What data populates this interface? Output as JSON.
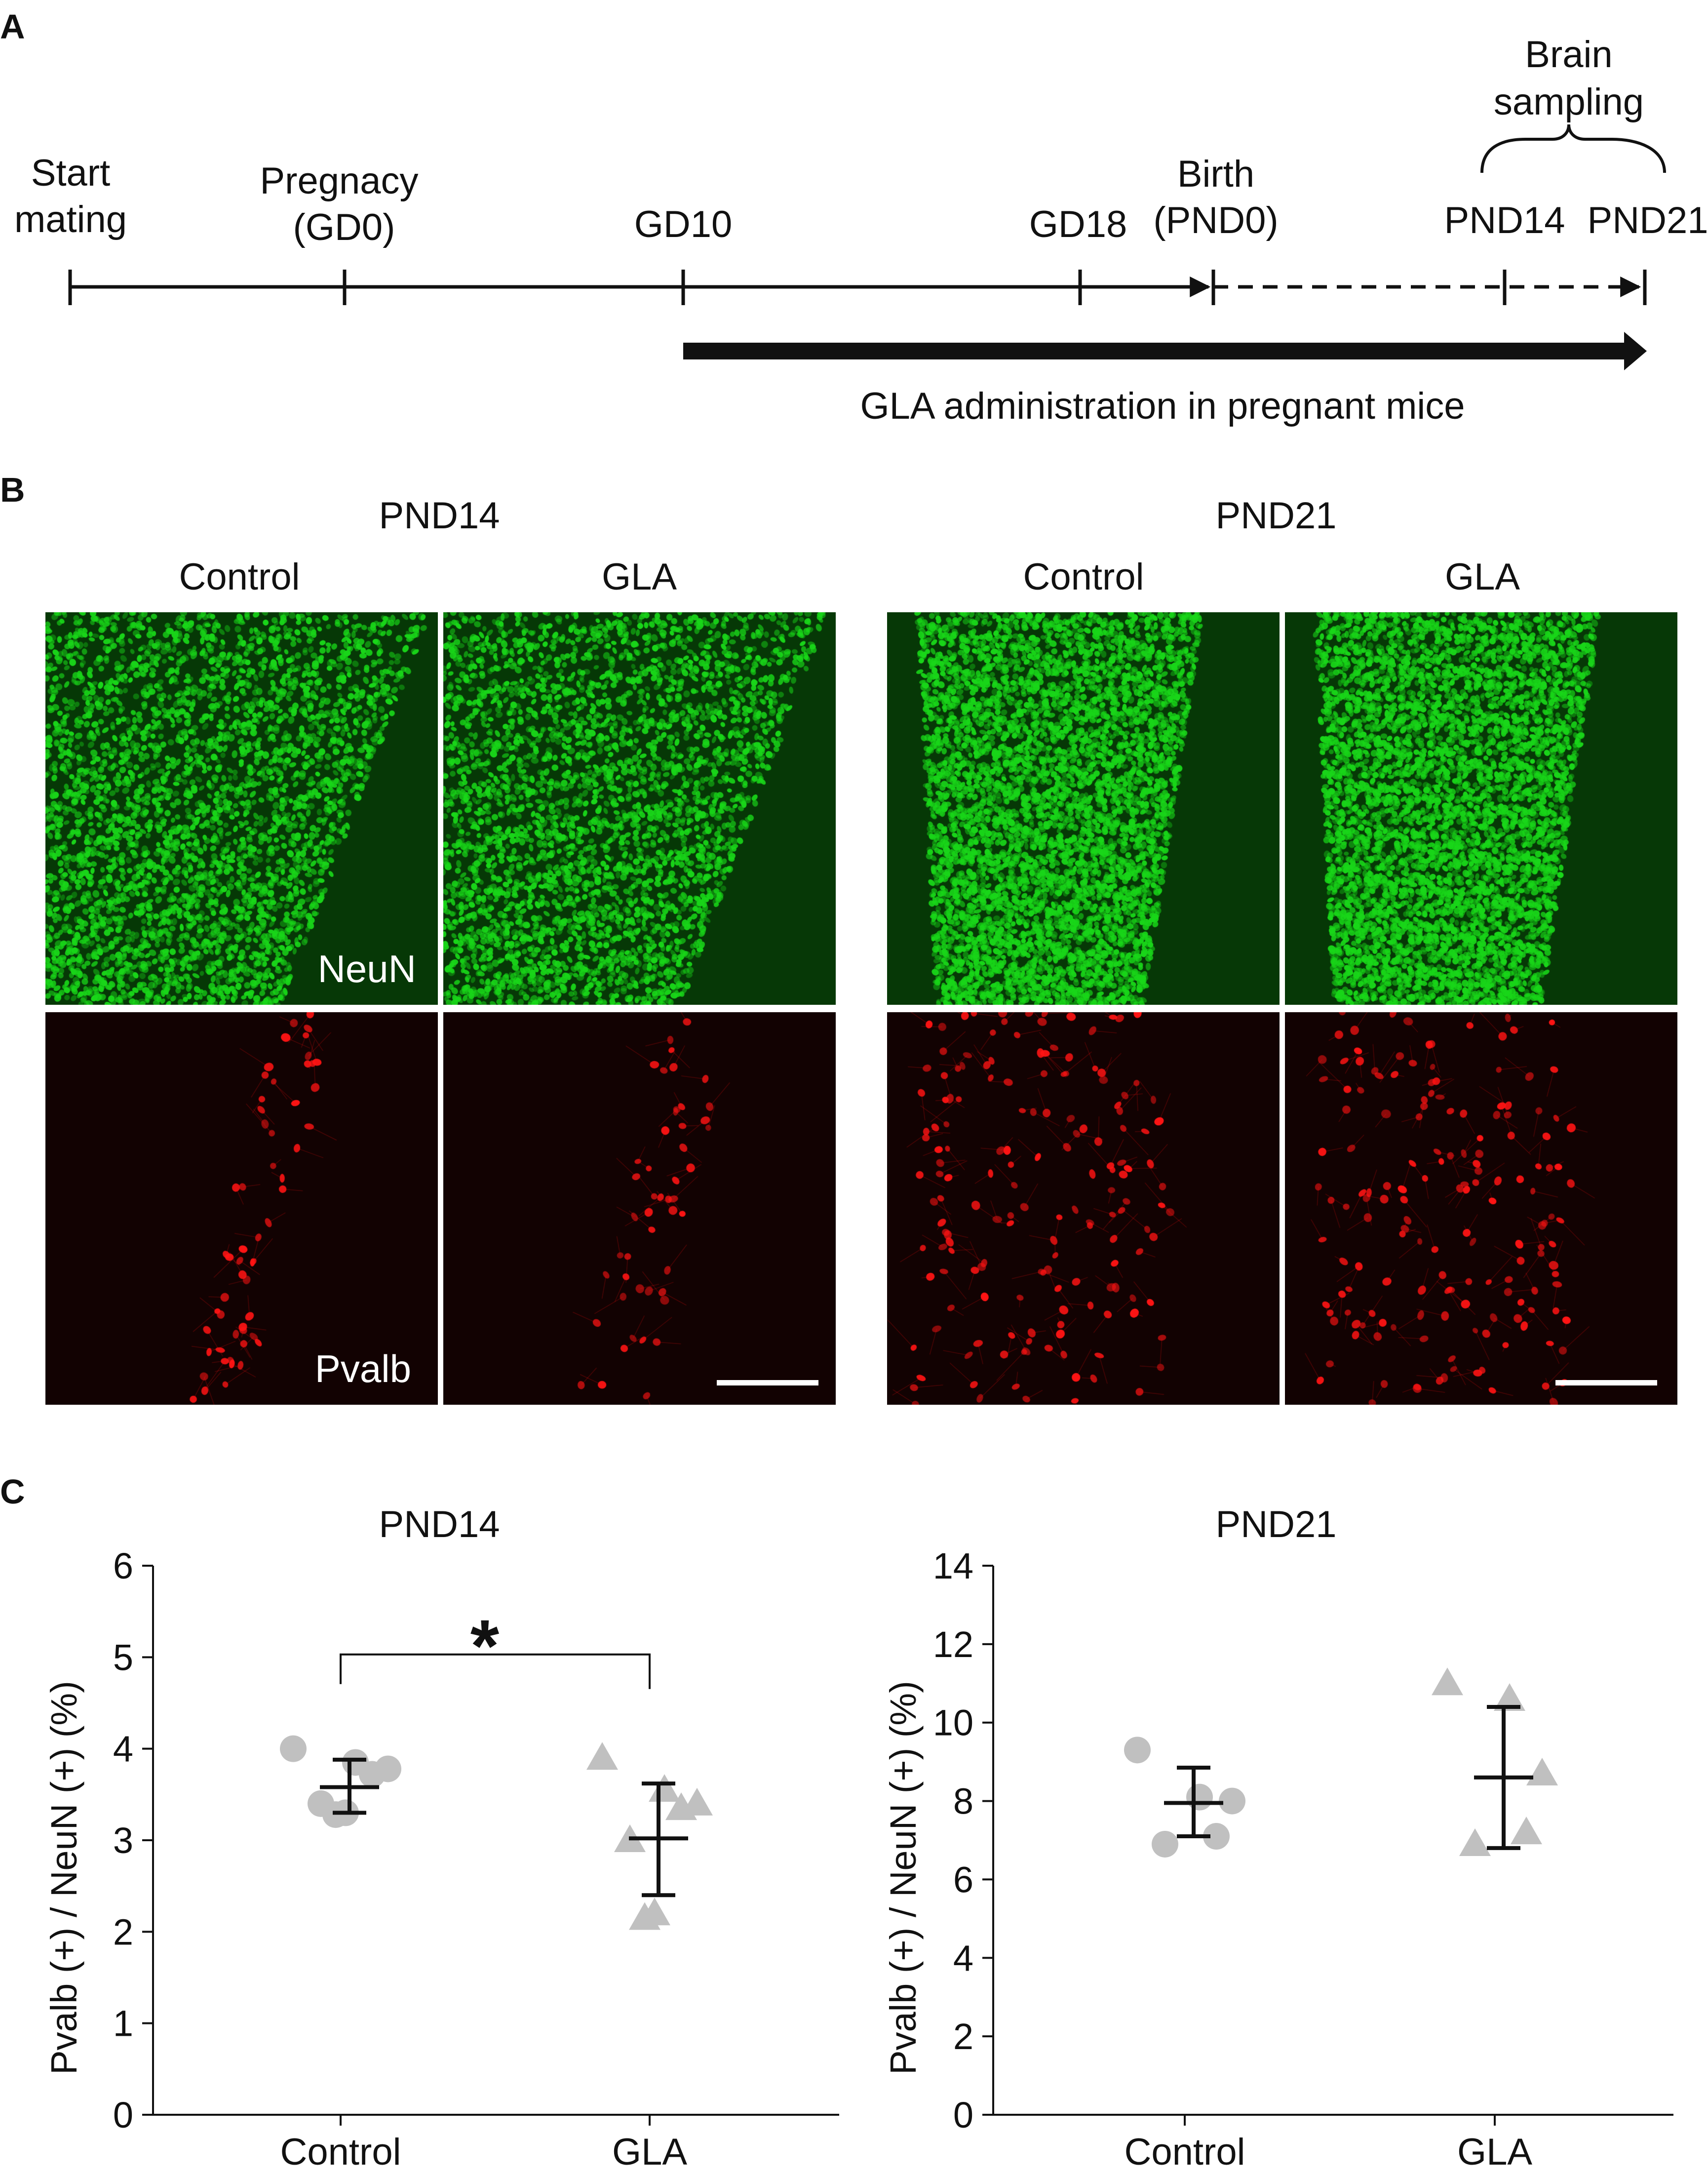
{
  "panel_a": {
    "label": "A",
    "timeline": [
      {
        "lines": [
          "Start",
          "mating"
        ]
      },
      {
        "lines": [
          "Pregnacy",
          "(GD0)"
        ]
      },
      {
        "lines": [
          "GD10"
        ]
      },
      {
        "lines": [
          "GD18"
        ]
      },
      {
        "lines": [
          "Birth",
          "(PND0)"
        ]
      },
      {
        "lines": [
          "PND14"
        ]
      },
      {
        "lines": [
          "PND21"
        ]
      }
    ],
    "bracket_label": [
      "Brain",
      "sampling"
    ],
    "administration_label": "GLA administration in pregnant mice"
  },
  "panel_b": {
    "label": "B",
    "groups": [
      {
        "title": "PND14",
        "columns": [
          "Control",
          "GLA"
        ]
      },
      {
        "title": "PND21",
        "columns": [
          "Control",
          "GLA"
        ]
      }
    ],
    "stain_labels": {
      "top": "NeuN",
      "bottom": "Pvalb"
    },
    "colors": {
      "neun": "#19d619",
      "pvalb": "#ff1414"
    }
  },
  "panel_c": {
    "label": "C"
  },
  "chart_data": [
    {
      "type": "scatter",
      "title": "PND14",
      "ylabel": "Pvalb (+) / NeuN (+) (%)",
      "categories": [
        "Control",
        "GLA"
      ],
      "ylim": [
        0,
        6
      ],
      "yticks": [
        0,
        1,
        2,
        3,
        4,
        5,
        6
      ],
      "series": [
        {
          "category": "Control",
          "marker": "circle",
          "color": "#c0c0c0",
          "points": [
            4.0,
            3.85,
            3.78,
            3.72,
            3.4,
            3.3,
            3.28
          ],
          "mean": 3.58,
          "error_low": 3.3,
          "error_high": 3.88
        },
        {
          "category": "GLA",
          "marker": "triangle",
          "color": "#c0c0c0",
          "points": [
            3.9,
            3.55,
            3.4,
            3.35,
            3.0,
            2.2,
            2.15
          ],
          "mean": 3.02,
          "error_low": 2.4,
          "error_high": 3.62
        }
      ],
      "significance": {
        "between": [
          "Control",
          "GLA"
        ],
        "y": 5.03,
        "symbol": "*"
      }
    },
    {
      "type": "scatter",
      "title": "PND21",
      "ylabel": "Pvalb (+) / NeuN (+) (%)",
      "categories": [
        "Control",
        "GLA"
      ],
      "ylim": [
        0,
        14
      ],
      "yticks": [
        0,
        2,
        4,
        6,
        8,
        10,
        12,
        14
      ],
      "series": [
        {
          "category": "Control",
          "marker": "circle",
          "color": "#c0c0c0",
          "points": [
            9.3,
            8.1,
            8.0,
            7.1,
            6.9
          ],
          "mean": 7.95,
          "error_low": 7.1,
          "error_high": 8.85
        },
        {
          "category": "GLA",
          "marker": "triangle",
          "color": "#c0c0c0",
          "points": [
            11.0,
            10.6,
            8.7,
            7.2,
            6.9
          ],
          "mean": 8.6,
          "error_low": 6.8,
          "error_high": 10.4
        }
      ]
    }
  ]
}
